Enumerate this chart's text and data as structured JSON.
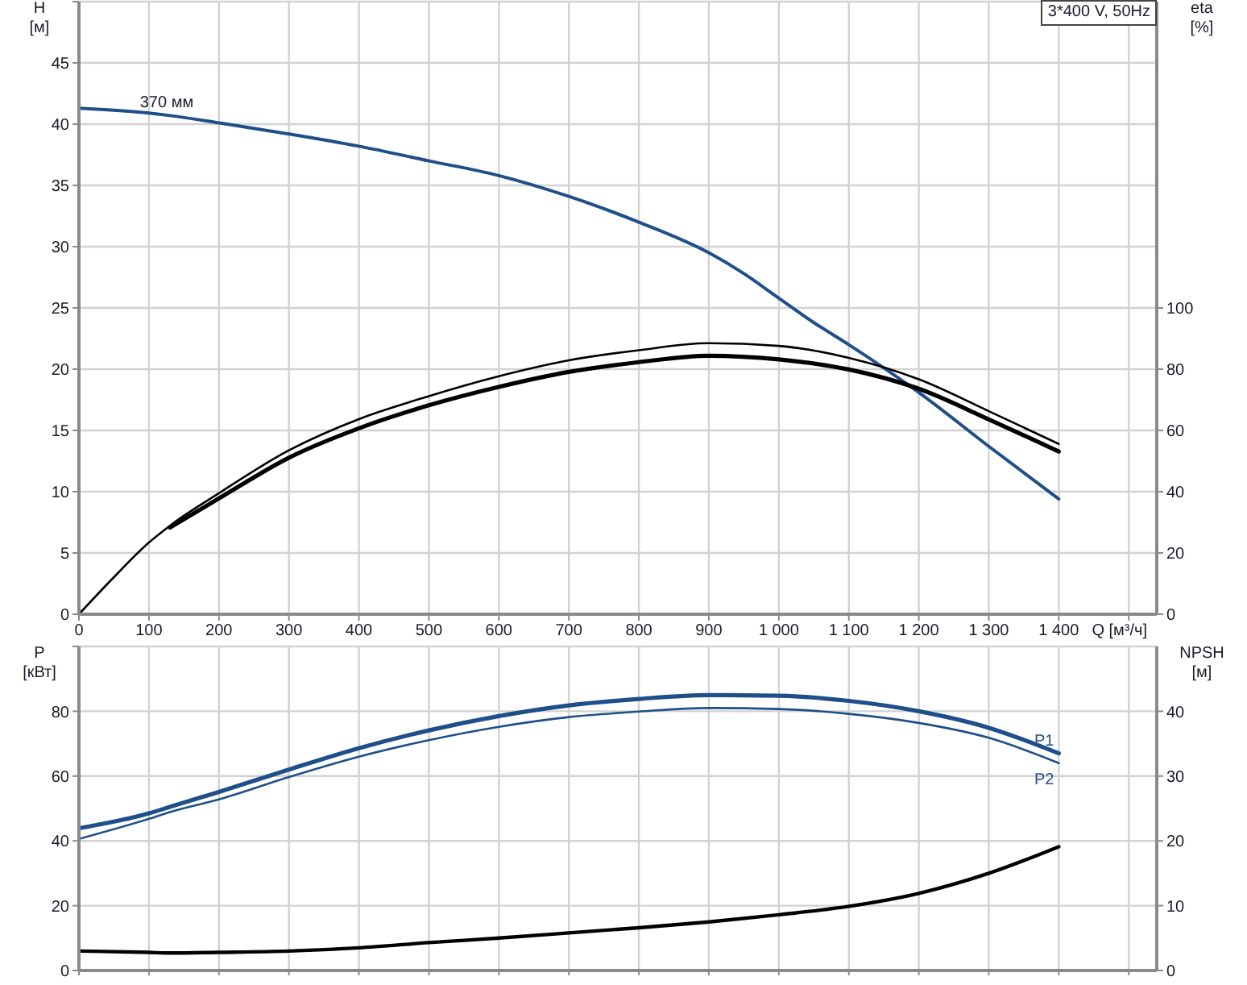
{
  "chart_data": [
    {
      "type": "line",
      "title": "3*400 V, 50Hz",
      "xlabel": "Q [м³/ч]",
      "ylabel": "H\n[м]",
      "y2label": "eta\n[%]",
      "xlim": [
        0,
        1540
      ],
      "xticks": [
        0,
        100,
        200,
        300,
        400,
        500,
        600,
        700,
        800,
        900,
        {
          "value": 1000,
          "label": "1 000"
        },
        {
          "value": 1100,
          "label": "1 100"
        },
        {
          "value": 1200,
          "label": "1 200"
        },
        {
          "value": 1300,
          "label": "1 300"
        },
        {
          "value": 1400,
          "label": "1 400"
        },
        {
          "value": 1500,
          "label": null
        }
      ],
      "ylim": [
        0,
        50
      ],
      "yticks": [
        0,
        5,
        10,
        15,
        20,
        25,
        30,
        35,
        40,
        45,
        {
          "value": 50,
          "label": null
        }
      ],
      "y2lim": [
        0,
        200
      ],
      "y2ticks": [
        0,
        20,
        40,
        60,
        80,
        100
      ],
      "grid": true,
      "marker": "none",
      "series": [
        {
          "name": "370 мм",
          "color": "#1f4f8a",
          "x": [
            0,
            100,
            130,
            200,
            300,
            400,
            500,
            600,
            700,
            800,
            900,
            950,
            1000,
            1050,
            1100,
            1200,
            1300,
            1400
          ],
          "values": [
            41.3,
            40.9,
            40.7,
            40.1,
            39.2,
            38.2,
            37.0,
            35.8,
            34.1,
            32.0,
            29.5,
            27.8,
            25.8,
            23.8,
            22.0,
            18.1,
            13.7,
            9.4
          ]
        },
        {
          "color": "#000000",
          "axis": "y2",
          "x": [
            0,
            50,
            100,
            130,
            200,
            300,
            400,
            500,
            600,
            700,
            800,
            900,
            1000,
            1100,
            1200,
            1300,
            1400
          ],
          "values": [
            0,
            12.1,
            23.4,
            28.9,
            39.5,
            53.5,
            63.7,
            71.2,
            77.7,
            82.9,
            86.2,
            88.5,
            87.6,
            83.7,
            76.7,
            66.3,
            55.6
          ]
        },
        {
          "color": "#000000",
          "axis": "y2",
          "x": [
            130,
            200,
            300,
            400,
            500,
            600,
            700,
            800,
            900,
            1000,
            1100,
            1200,
            1300,
            1400
          ],
          "values": [
            28.3,
            37.8,
            51.1,
            60.7,
            68.2,
            74.2,
            79.1,
            82.3,
            84.4,
            83.2,
            79.9,
            73.6,
            63.6,
            53.1
          ]
        }
      ]
    },
    {
      "type": "line",
      "ylabel": "P\n[кВт]",
      "y2label": "NPSH\n[м]",
      "xlim": [
        0,
        1540
      ],
      "xticks": [
        0,
        100,
        200,
        300,
        400,
        500,
        600,
        700,
        800,
        900,
        1000,
        1100,
        1200,
        1300,
        1400,
        1500
      ],
      "ylim": [
        0,
        100
      ],
      "yticks": [
        0,
        20,
        40,
        60,
        80,
        {
          "value": 100,
          "label": null
        }
      ],
      "y2lim": [
        0,
        50
      ],
      "y2ticks": [
        0,
        10,
        20,
        30,
        40
      ],
      "grid": true,
      "marker": "none",
      "tick_labels": "y",
      "series": [
        {
          "name": "P1",
          "color": "#1f4f8a",
          "x": [
            0,
            100,
            130,
            200,
            300,
            400,
            500,
            600,
            700,
            800,
            900,
            1000,
            1100,
            1200,
            1300,
            1400
          ],
          "values": [
            43.9,
            48.5,
            50.5,
            55.1,
            62.0,
            68.6,
            74.1,
            78.5,
            81.8,
            83.8,
            85.0,
            84.8,
            83.2,
            80.0,
            74.9,
            67.0
          ]
        },
        {
          "name": "P2",
          "color": "#1f4f8a",
          "x": [
            0,
            100,
            130,
            200,
            300,
            400,
            500,
            600,
            700,
            800,
            900,
            1000,
            1100,
            1200,
            1300,
            1400
          ],
          "values": [
            40.6,
            46.8,
            48.9,
            52.8,
            59.7,
            66.0,
            71.1,
            75.2,
            78.2,
            79.9,
            81.0,
            80.7,
            79.2,
            76.4,
            71.8,
            64.0
          ]
        },
        {
          "color": "#000000",
          "axis": "y2",
          "x": [
            0,
            100,
            130,
            200,
            300,
            400,
            500,
            600,
            700,
            800,
            900,
            1000,
            1100,
            1200,
            1300,
            1400
          ],
          "values": [
            3.0,
            2.8,
            2.7,
            2.8,
            3.0,
            3.5,
            4.3,
            5.0,
            5.8,
            6.6,
            7.5,
            8.6,
            9.9,
            11.9,
            15.0,
            19.1
          ]
        }
      ]
    }
  ]
}
